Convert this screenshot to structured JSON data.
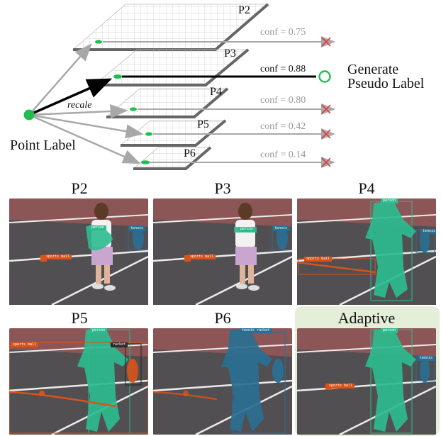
{
  "diagram": {
    "levels": [
      {
        "name": "P2",
        "conf": "conf = 0.75",
        "selected": false
      },
      {
        "name": "P3",
        "conf": "conf = 0.88",
        "selected": true
      },
      {
        "name": "P4",
        "conf": "conf = 0.80",
        "selected": false
      },
      {
        "name": "P5",
        "conf": "conf = 0.42",
        "selected": false
      },
      {
        "name": "P6",
        "conf": "conf = 0.14",
        "selected": false
      }
    ],
    "point_label": "Point Label",
    "recale_label": "recale",
    "output_label_line1": "Generate",
    "output_label_line2": "Pseudo Label",
    "colors": {
      "accept": "#1fbf4f",
      "reject": "#e23b3b",
      "gray_arrow": "#a8a8a8",
      "plane_edge": "#666666"
    }
  },
  "results": {
    "panels": [
      {
        "title": "P2",
        "mask": "partial-teal",
        "tags": [
          "person",
          "tennis",
          "sports ball"
        ]
      },
      {
        "title": "P3",
        "mask": "small-teal",
        "tags": [
          "person",
          "tennis",
          "sports ball"
        ]
      },
      {
        "title": "P4",
        "mask": "full-teal",
        "tags": [
          "person",
          "tennis",
          "sports ball"
        ]
      },
      {
        "title": "P5",
        "mask": "full-teal",
        "tags": [
          "person",
          "racket",
          "sports ball"
        ]
      },
      {
        "title": "P6",
        "mask": "blue",
        "tags": [
          "tennis racket"
        ]
      },
      {
        "title": "Adaptive",
        "mask": "full-teal",
        "tags": [
          "person",
          "tennis",
          "sports ball"
        ]
      }
    ]
  }
}
